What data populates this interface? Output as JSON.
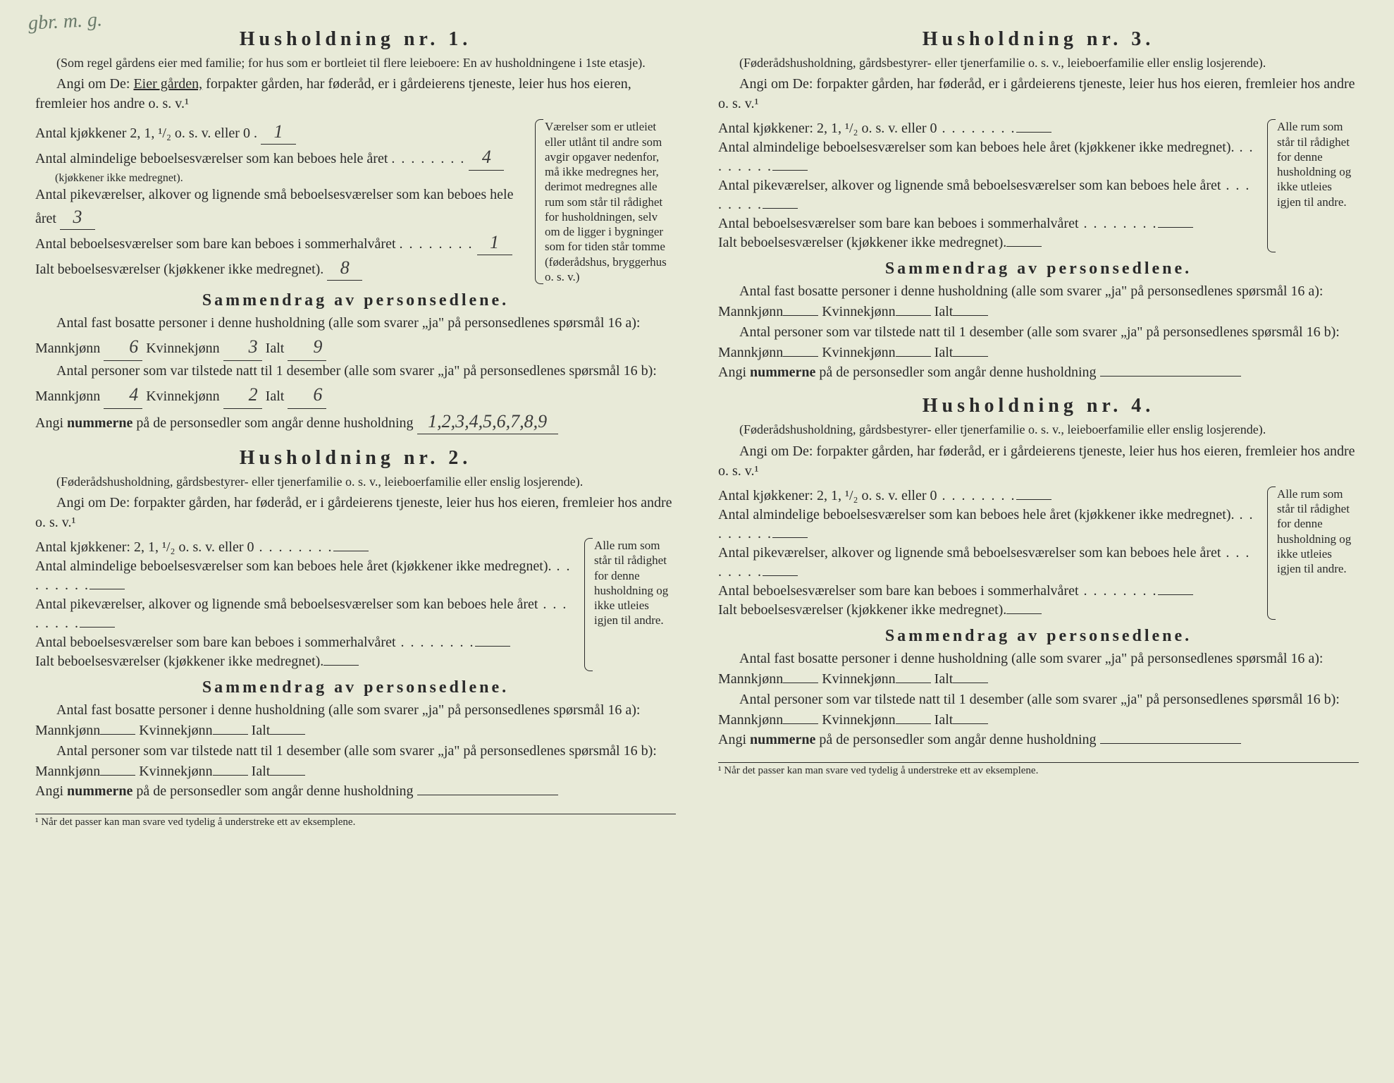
{
  "handnote": "gbr. m. g.",
  "households": [
    {
      "title": "Husholdning nr. 1.",
      "subtitle": "(Som regel gårdens eier med familie; for hus som er bortleiet til flere leieboere: En av husholdningene i 1ste etasje).",
      "prompt_pre": "Angi om De: ",
      "prompt_owner": "Eier gården,",
      "prompt_rest": " forpakter gården, har føderåd, er i gårdeierens tjeneste, leier hus hos eieren, fremleier hos andre o. s. v.¹",
      "rows": {
        "kjokken": "Antal kjøkkener 2, 1, ¹/₂ o. s. v. eller 0",
        "kjokken_val": "1",
        "alm": "Antal almindelige beboelsesværelser som kan beboes hele året",
        "alm_note": "(kjøkkener ikke medregnet).",
        "alm_val": "4",
        "pike": "Antal pikeværelser, alkover og lignende små beboelsesværelser som kan beboes hele året",
        "pike_val": "3",
        "sommer": "Antal beboelsesværelser som bare kan beboes i sommerhalvåret",
        "sommer_val": "1",
        "ialt": "Ialt beboelsesværelser (kjøkkener ikke medregnet).",
        "ialt_val": "8"
      },
      "sidenote": "Værelser som er utleiet eller utlånt til andre som avgir opgaver nedenfor, må ikke medregnes her, derimot medregnes alle rum som står til rådighet for husholdningen, selv om de ligger i bygninger som for tiden står tomme (føderådshus, bryggerhus o. s. v.)",
      "summary_title": "Sammendrag av personsedlene.",
      "s1": "Antal fast bosatte personer i denne husholdning (alle som svarer „ja\" på personsedlenes spørsmål 16 a): Mannkjønn",
      "s1_m": "6",
      "s1_k_label": "Kvinnekjønn",
      "s1_k": "3",
      "s1_i_label": "Ialt",
      "s1_i": "9",
      "s2": "Antal personer som var tilstede natt til 1 desember (alle som svarer „ja\" på personsedlenes spørsmål 16 b): Mannkjønn",
      "s2_m": "4",
      "s2_k": "2",
      "s2_i": "6",
      "s3_pre": "Angi ",
      "s3_bold": "nummerne",
      "s3_post": " på de personsedler som angår denne husholdning",
      "s3_val": "1,2,3,4,5,6,7,8,9"
    },
    {
      "title": "Husholdning nr. 2.",
      "subtitle": "(Føderådshusholdning, gårdsbestyrer- eller tjenerfamilie o. s. v., leieboerfamilie eller enslig losjerende).",
      "prompt": "Angi om De:  forpakter gården, har føderåd, er i gårdeierens tjeneste, leier hus hos eieren, fremleier hos andre o. s. v.¹",
      "rows": {
        "kjokken": "Antal kjøkkener: 2, 1, ¹/₂ o. s. v. eller 0",
        "alm": "Antal almindelige beboelsesværelser som kan beboes hele året (kjøkkener ikke medregnet).",
        "pike": "Antal pikeværelser, alkover og lignende små beboelsesværelser som kan beboes hele året",
        "sommer": "Antal beboelsesværelser som bare kan beboes i sommerhalvåret",
        "ialt": "Ialt beboelsesværelser (kjøkkener ikke medregnet)."
      },
      "sidenote": "Alle rum som står til rådighet for denne husholdning og ikke utleies igjen til andre.",
      "summary_title": "Sammendrag av personsedlene.",
      "s1": "Antal fast bosatte personer i denne husholdning (alle som svarer „ja\" på personsedlenes spørsmål 16 a): Mannkjønn",
      "s1_k_label": "Kvinnekjønn",
      "s1_i_label": "Ialt",
      "s2": "Antal personer som var tilstede natt til 1 desember (alle som svarer „ja\" på personsedlenes spørsmål 16 b): Mannkjønn",
      "s3_pre": "Angi ",
      "s3_bold": "nummerne",
      "s3_post": " på de personsedler som angår denne husholdning"
    },
    {
      "title": "Husholdning nr. 3.",
      "subtitle": "(Føderådshusholdning, gårdsbestyrer- eller tjenerfamilie o. s. v., leieboerfamilie eller enslig losjerende).",
      "prompt": "Angi om De:  forpakter gården, har føderåd, er i gårdeierens tjeneste, leier hus hos eieren, fremleier hos andre o. s. v.¹",
      "rows": {
        "kjokken": "Antal kjøkkener: 2, 1, ¹/₂ o. s. v. eller 0",
        "alm": "Antal almindelige beboelsesværelser som kan beboes hele året (kjøkkener ikke medregnet).",
        "pike": "Antal pikeværelser, alkover og lignende små beboelsesværelser som kan beboes hele året",
        "sommer": "Antal beboelsesværelser som bare kan beboes i sommerhalvåret",
        "ialt": "Ialt beboelsesværelser (kjøkkener ikke medregnet)."
      },
      "sidenote": "Alle rum som står til rådighet for denne husholdning og ikke utleies igjen til andre.",
      "summary_title": "Sammendrag av personsedlene.",
      "s1": "Antal fast bosatte personer i denne husholdning (alle som svarer „ja\" på personsedlenes spørsmål 16 a): Mannkjønn",
      "s1_k_label": "Kvinnekjønn",
      "s1_i_label": "Ialt",
      "s2": "Antal personer som var tilstede natt til 1 desember (alle som svarer „ja\" på personsedlenes spørsmål 16 b): Mannkjønn",
      "s3_pre": "Angi ",
      "s3_bold": "nummerne",
      "s3_post": " på de personsedler som angår denne husholdning"
    },
    {
      "title": "Husholdning nr. 4.",
      "subtitle": "(Føderådshusholdning, gårdsbestyrer- eller tjenerfamilie o. s. v., leieboerfamilie eller enslig losjerende).",
      "prompt": "Angi om De:  forpakter gården, har føderåd, er i gårdeierens tjeneste, leier hus hos eieren, fremleier hos andre o. s. v.¹",
      "rows": {
        "kjokken": "Antal kjøkkener: 2, 1, ¹/₂ o. s. v. eller 0",
        "alm": "Antal almindelige beboelsesværelser som kan beboes hele året (kjøkkener ikke medregnet).",
        "pike": "Antal pikeværelser, alkover og lignende små beboelsesværelser som kan beboes hele året",
        "sommer": "Antal beboelsesværelser som bare kan beboes i sommerhalvåret",
        "ialt": "Ialt beboelsesværelser (kjøkkener ikke medregnet)."
      },
      "sidenote": "Alle rum som står til rådighet for denne husholdning og ikke utleies igjen til andre.",
      "summary_title": "Sammendrag av personsedlene.",
      "s1": "Antal fast bosatte personer i denne husholdning (alle som svarer „ja\" på personsedlenes spørsmål 16 a): Mannkjønn",
      "s1_k_label": "Kvinnekjønn",
      "s1_i_label": "Ialt",
      "s2": "Antal personer som var tilstede natt til 1 desember (alle som svarer „ja\" på personsedlenes spørsmål 16 b): Mannkjønn",
      "s3_pre": "Angi ",
      "s3_bold": "nummerne",
      "s3_post": " på de personsedler som angår denne husholdning"
    }
  ],
  "footnote": "¹ Når det passer kan man svare ved tydelig å understreke ett av eksemplene."
}
